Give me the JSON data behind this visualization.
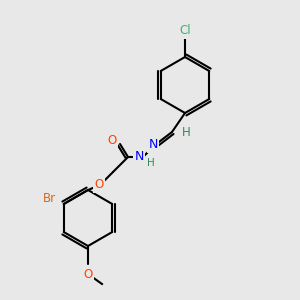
{
  "background_color": "#e8e8e8",
  "figsize": [
    3.0,
    3.0
  ],
  "dpi": 100,
  "bond_color": "#000000",
  "bond_lw": 1.5,
  "atom_colors": {
    "Cl": "#3cb371",
    "N": "#0000ff",
    "O": "#ff4500",
    "Br": "#d2691e",
    "C": "#000000",
    "H": "#2e8b57"
  },
  "font_size": 8.5
}
